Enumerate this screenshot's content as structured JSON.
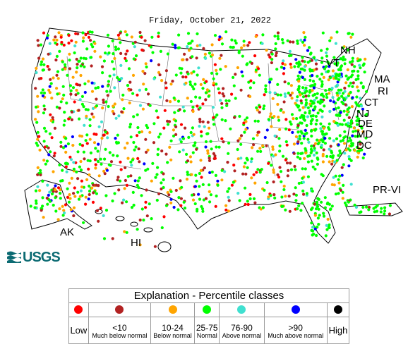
{
  "date": "Friday, October 21, 2022",
  "state_labels": {
    "nh": "NH",
    "vt": "VT",
    "ma": "MA",
    "ri": "RI",
    "ct": "CT",
    "nj": "NJ",
    "de": "DE",
    "md": "MD",
    "dc": "DC",
    "pr_vi": "PR-VI",
    "ak": "AK",
    "hi": "HI"
  },
  "logo_text": "USGS",
  "legend": {
    "title": "Explanation - Percentile classes",
    "classes": [
      {
        "color": "#ff0000",
        "label": "Low",
        "sub": ""
      },
      {
        "color": "#b22222",
        "label": "<10",
        "sub": "Much below normal"
      },
      {
        "color": "#ffa500",
        "label": "10-24",
        "sub": "Below normal"
      },
      {
        "color": "#00ff00",
        "label": "25-75",
        "sub": "Normal"
      },
      {
        "color": "#40e0d0",
        "label": "76-90",
        "sub": "Above normal"
      },
      {
        "color": "#0000ff",
        "label": ">90",
        "sub": "Much above normal"
      },
      {
        "color": "#000000",
        "label": "High",
        "sub": ""
      }
    ]
  }
}
